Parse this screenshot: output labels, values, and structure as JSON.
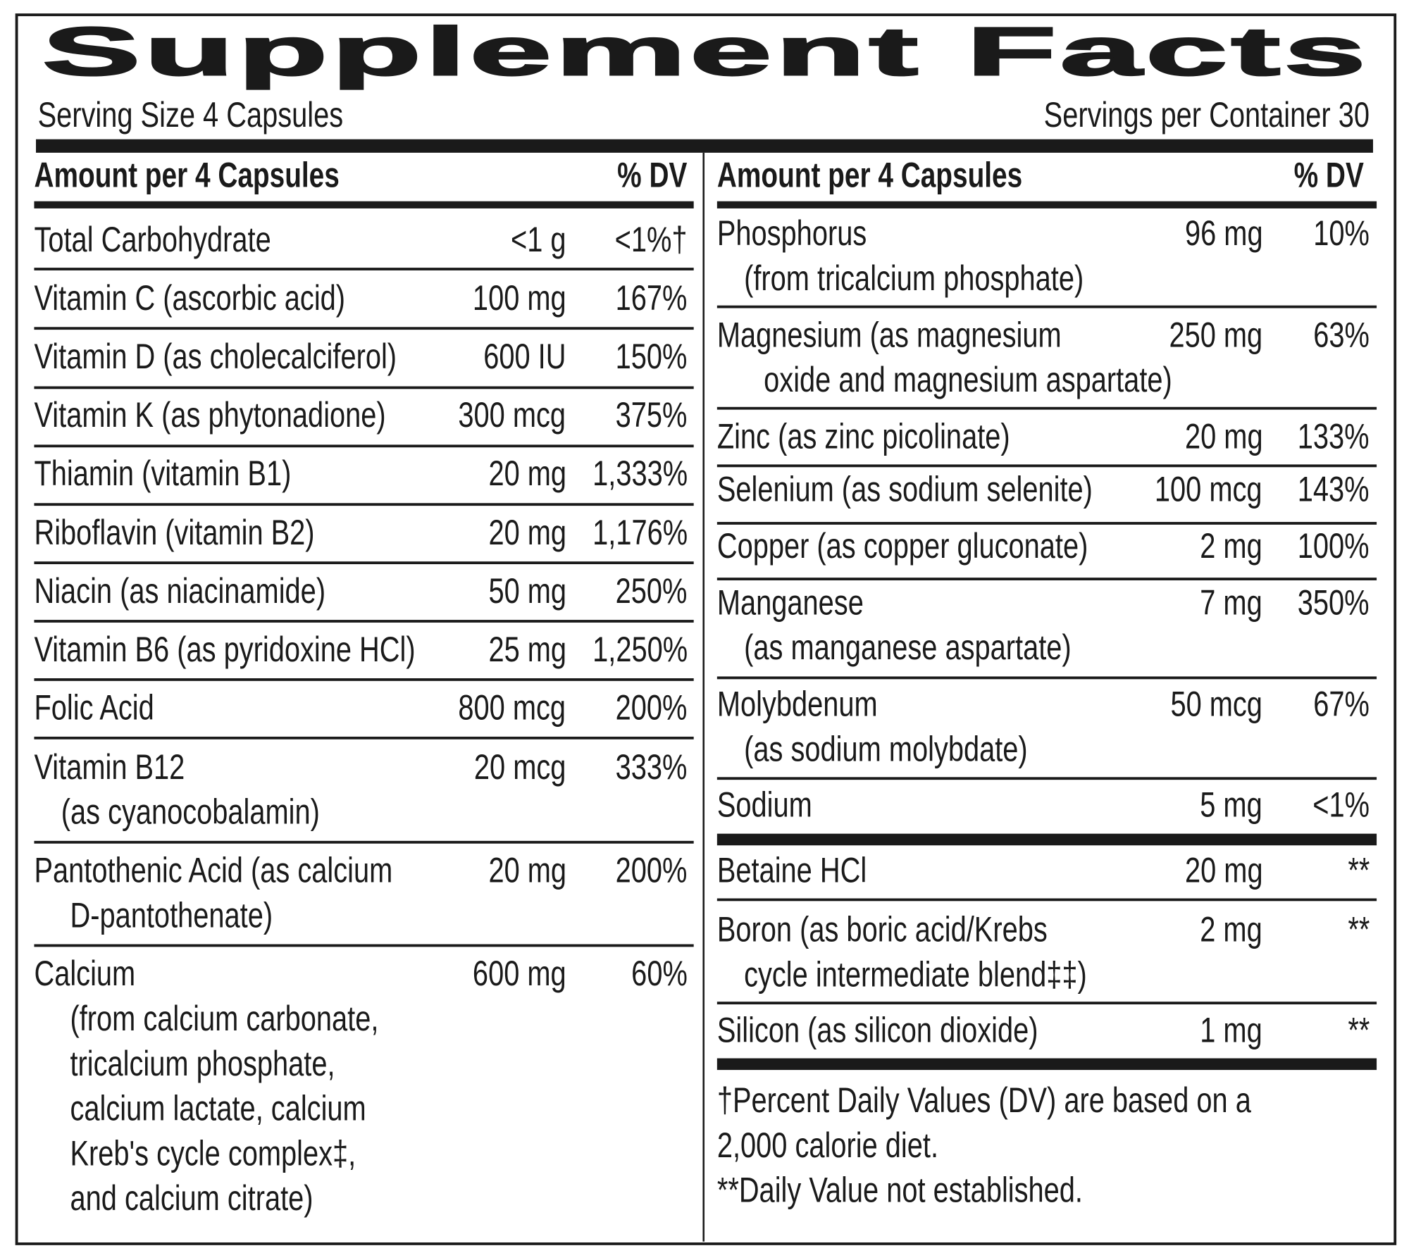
{
  "title": "Supplement Facts",
  "serving_size": "Serving Size 4 Capsules",
  "servings_per_container": "Servings per Container 30",
  "left": {
    "header": {
      "amount": "Amount per 4 Capsules",
      "dv": "% DV"
    },
    "rows": [
      {
        "lines": [
          "Total Carbohydrate"
        ],
        "amount": "<1 g",
        "dv": "<1%†"
      },
      {
        "lines": [
          "Vitamin C (ascorbic acid)"
        ],
        "amount": "100 mg",
        "dv": "167%"
      },
      {
        "lines": [
          "Vitamin D (as cholecalciferol)"
        ],
        "amount": "600 IU",
        "dv": "150%"
      },
      {
        "lines": [
          "Vitamin K (as phytonadione)"
        ],
        "amount": "300 mcg",
        "dv": "375%"
      },
      {
        "lines": [
          "Thiamin (vitamin B1)"
        ],
        "amount": "20 mg",
        "dv": "1,333%"
      },
      {
        "lines": [
          "Riboflavin (vitamin B2)"
        ],
        "amount": "20 mg",
        "dv": "1,176%"
      },
      {
        "lines": [
          "Niacin (as niacinamide)"
        ],
        "amount": "50 mg",
        "dv": "250%"
      },
      {
        "lines": [
          "Vitamin B6 (as pyridoxine HCl)"
        ],
        "amount": "25 mg",
        "dv": "1,250%"
      },
      {
        "lines": [
          "Folic Acid"
        ],
        "amount": "800 mcg",
        "dv": "200%"
      },
      {
        "lines": [
          "Vitamin B12",
          "(as cyanocobalamin)"
        ],
        "amount": "20 mcg",
        "dv": "333%"
      },
      {
        "lines": [
          "Pantothenic Acid (as calcium",
          "D-pantothenate)"
        ],
        "amount": "20 mg",
        "dv": "200%"
      },
      {
        "lines": [
          "Calcium",
          "(from calcium carbonate,",
          "tricalcium phosphate,",
          "calcium lactate, calcium",
          "Kreb's cycle complex‡,",
          "and calcium citrate)"
        ],
        "amount": "600 mg",
        "dv": "60%"
      }
    ]
  },
  "right": {
    "header": {
      "amount": "Amount per 4 Capsules",
      "dv": "% DV"
    },
    "rows": [
      {
        "lines": [
          "Phosphorus",
          "(from tricalcium phosphate)"
        ],
        "amount": "96 mg",
        "dv": "10%"
      },
      {
        "lines": [
          "Magnesium (as magnesium",
          "oxide and magnesium aspartate)"
        ],
        "amount": "250 mg",
        "dv": "63%"
      },
      {
        "lines": [
          "Zinc (as zinc picolinate)"
        ],
        "amount": "20 mg",
        "dv": "133%"
      },
      {
        "lines": [
          "Selenium (as sodium selenite)"
        ],
        "amount": "100 mcg",
        "dv": "143%"
      },
      {
        "lines": [
          "Copper (as copper gluconate)"
        ],
        "amount": "2 mg",
        "dv": "100%"
      },
      {
        "lines": [
          "Manganese",
          "(as manganese aspartate)"
        ],
        "amount": "7 mg",
        "dv": "350%"
      },
      {
        "lines": [
          "Molybdenum",
          "(as sodium molybdate)"
        ],
        "amount": "50 mcg",
        "dv": "67%"
      },
      {
        "lines": [
          "Sodium"
        ],
        "amount": "5 mg",
        "dv": "<1%"
      },
      {
        "lines": [
          "Betaine HCl"
        ],
        "amount": "20 mg",
        "dv": "**"
      },
      {
        "lines": [
          "Boron (as boric acid/Krebs",
          "cycle intermediate blend‡‡)"
        ],
        "amount": "2 mg",
        "dv": "**"
      },
      {
        "lines": [
          "Silicon (as silicon dioxide)"
        ],
        "amount": "1 mg",
        "dv": "**"
      }
    ]
  },
  "footnotes": [
    "†Percent Daily Values (DV) are based on a",
    "2,000 calorie diet.",
    "**Daily Value not established."
  ]
}
